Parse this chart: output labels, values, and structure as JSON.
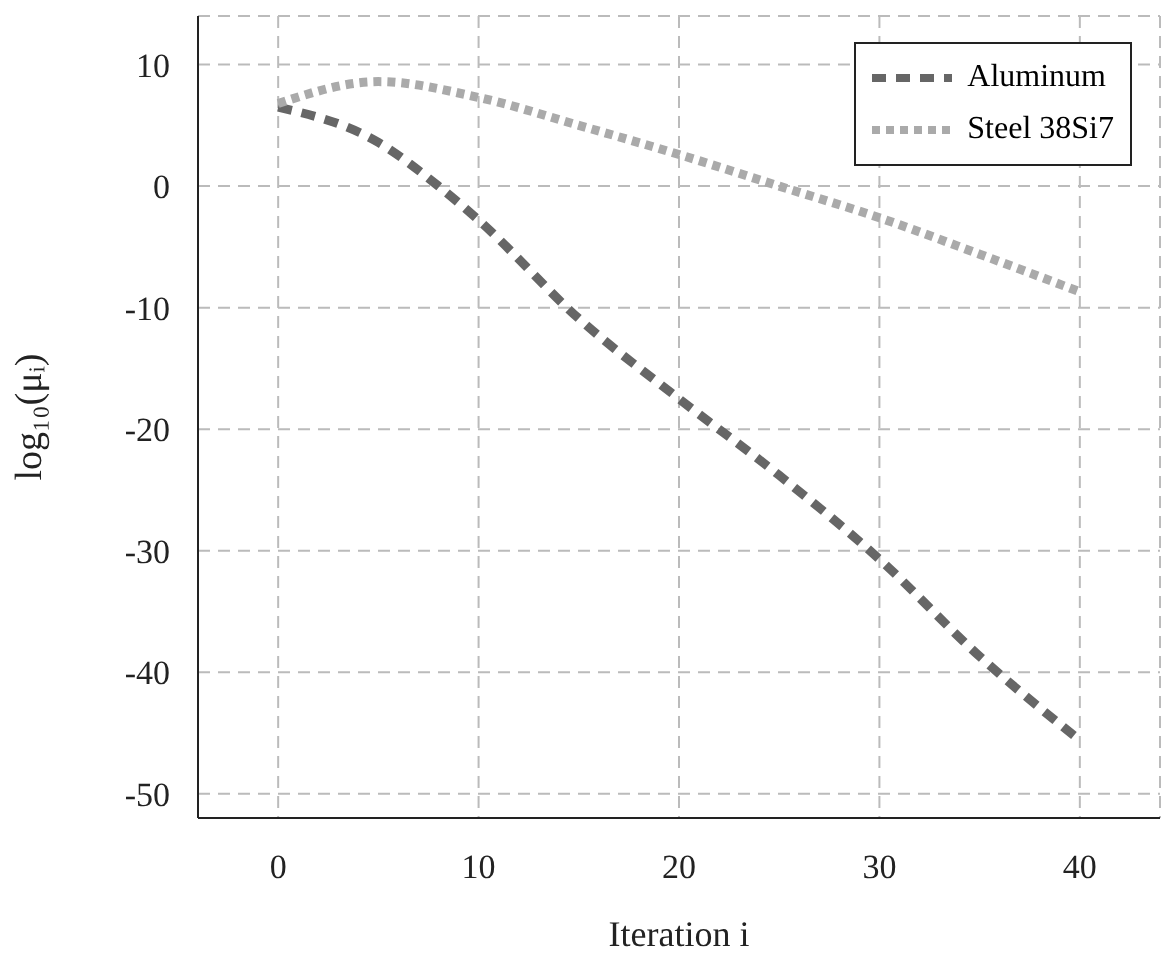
{
  "chart_data": {
    "type": "line",
    "xlabel": "Iteration i",
    "ylabel": "log₁₀(μᵢ)",
    "x": [
      0,
      5,
      8,
      10,
      15,
      20,
      25,
      30,
      35,
      40
    ],
    "series": [
      {
        "name": "Aluminum",
        "color": "#666666",
        "line_style": "dashed",
        "values": [
          6.5,
          3.6,
          0,
          -2.8,
          -10.9,
          -17.5,
          -23.8,
          -30.7,
          -38.7,
          -45.6
        ]
      },
      {
        "name": "Steel 38Si7",
        "color": "#aaaaaa",
        "line_style": "dotted",
        "values": [
          6.8,
          8.6,
          null,
          7.3,
          5,
          2.6,
          0,
          -2.6,
          -5.6,
          -8.7
        ]
      }
    ],
    "xlim": [
      -4,
      44
    ],
    "xticks": [
      0,
      10,
      20,
      30,
      40
    ],
    "ylim": [
      -52,
      14
    ],
    "yticks": [
      -50,
      -40,
      -30,
      -20,
      -10,
      0,
      10
    ],
    "grid": true,
    "legend": "top right",
    "marker": "none"
  }
}
